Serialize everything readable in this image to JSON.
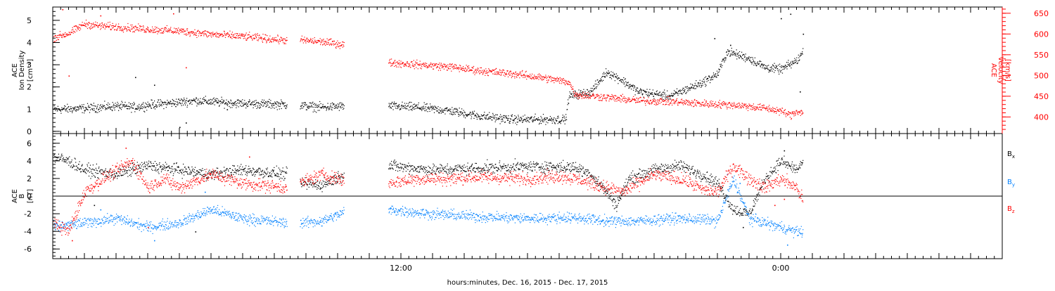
{
  "chart_data": {
    "type": "scatter",
    "xlabel": "hours:minutes, Dec. 16, 2015 - Dec. 17, 2015",
    "xlim": [
      0,
      30
    ],
    "x_tick_labels": [
      {
        "t": 11,
        "label": "12:00"
      },
      {
        "t": 23,
        "label": "0:00"
      }
    ],
    "x_major_ticks": [
      1,
      2,
      3,
      4,
      5,
      6,
      7,
      8,
      9,
      10,
      11,
      12,
      13,
      14,
      15,
      16,
      17,
      18,
      19,
      20,
      21,
      22,
      23,
      24,
      25,
      26,
      27,
      28,
      29
    ],
    "gaps": [
      [
        7.4,
        7.8
      ],
      [
        9.2,
        10.6
      ]
    ],
    "data_end": 23.7,
    "colors": {
      "black": "#000000",
      "red": "#ff0000",
      "blue": "#0080ff"
    },
    "panels": [
      {
        "name": "plasma",
        "left_axis": {
          "label_lines": [
            "ACE",
            "Ion Density"
          ],
          "unit": "[cm⁻³]",
          "ylim": [
            -0.1,
            5.6
          ],
          "ticks": [
            0,
            1,
            2,
            3,
            4,
            5
          ],
          "color": "#000000"
        },
        "right_axis": {
          "label_lines": [
            "ACE",
            "Velocity"
          ],
          "unit": "[km/s]",
          "ylim": [
            360,
            665
          ],
          "ticks": [
            400,
            450,
            500,
            550,
            600,
            650
          ],
          "color": "#ff0000"
        },
        "series": [
          {
            "name": "Ion Density",
            "axis": "left",
            "color": "#000000",
            "scatter": 0.15,
            "anchors": [
              [
                0.0,
                1.0
              ],
              [
                1.0,
                1.05
              ],
              [
                2.0,
                1.15
              ],
              [
                2.6,
                1.1
              ],
              [
                3.0,
                1.2
              ],
              [
                3.8,
                1.3
              ],
              [
                4.5,
                1.4
              ],
              [
                5.5,
                1.3
              ],
              [
                6.5,
                1.25
              ],
              [
                7.4,
                1.22
              ],
              [
                7.8,
                1.18
              ],
              [
                8.5,
                1.1
              ],
              [
                9.2,
                1.15
              ],
              [
                10.6,
                1.15
              ],
              [
                11.5,
                1.1
              ],
              [
                12.5,
                0.95
              ],
              [
                13.5,
                0.7
              ],
              [
                14.5,
                0.55
              ],
              [
                15.5,
                0.55
              ],
              [
                16.2,
                0.55
              ],
              [
                16.3,
                1.6
              ],
              [
                17.0,
                1.8
              ],
              [
                17.5,
                2.7
              ],
              [
                18.0,
                2.3
              ],
              [
                18.5,
                1.8
              ],
              [
                19.5,
                1.6
              ],
              [
                20.5,
                2.2
              ],
              [
                21.0,
                2.6
              ],
              [
                21.3,
                3.6
              ],
              [
                22.0,
                3.3
              ],
              [
                22.5,
                2.9
              ],
              [
                23.0,
                2.8
              ],
              [
                23.5,
                3.2
              ],
              [
                23.7,
                3.6
              ]
            ],
            "spikes": [
              [
                2.6,
                2.45
              ],
              [
                3.2,
                2.1
              ],
              [
                4.0,
                0.2
              ],
              [
                4.2,
                0.4
              ],
              [
                5.5,
                1.0
              ],
              [
                20.9,
                4.2
              ],
              [
                21.4,
                3.9
              ],
              [
                23.3,
                5.3
              ],
              [
                23.0,
                5.1
              ],
              [
                23.7,
                4.4
              ],
              [
                23.6,
                1.8
              ]
            ]
          },
          {
            "name": "Velocity",
            "axis": "right",
            "color": "#ff0000",
            "scatter": 7,
            "anchors": [
              [
                0.0,
                592
              ],
              [
                0.5,
                602
              ],
              [
                1.0,
                625
              ],
              [
                1.5,
                620
              ],
              [
                2.0,
                618
              ],
              [
                3.0,
                612
              ],
              [
                4.0,
                608
              ],
              [
                5.0,
                600
              ],
              [
                6.0,
                595
              ],
              [
                7.4,
                585
              ],
              [
                7.8,
                586
              ],
              [
                8.5,
                582
              ],
              [
                9.2,
                575
              ],
              [
                10.6,
                532
              ],
              [
                11.5,
                527
              ],
              [
                12.5,
                522
              ],
              [
                13.5,
                512
              ],
              [
                14.5,
                505
              ],
              [
                15.5,
                495
              ],
              [
                16.3,
                485
              ],
              [
                16.5,
                455
              ],
              [
                17.5,
                448
              ],
              [
                18.5,
                440
              ],
              [
                19.5,
                438
              ],
              [
                20.5,
                433
              ],
              [
                21.5,
                430
              ],
              [
                22.5,
                422
              ],
              [
                23.0,
                415
              ],
              [
                23.3,
                405
              ],
              [
                23.5,
                415
              ],
              [
                23.7,
                410
              ]
            ],
            "spikes": [
              [
                0.5,
                500
              ],
              [
                1.5,
                645
              ],
              [
                3.8,
                650
              ],
              [
                4.2,
                520
              ],
              [
                0.3,
                660
              ]
            ]
          }
        ]
      },
      {
        "name": "magnetic",
        "left_axis": {
          "label_lines": [
            "ACE",
            "B"
          ],
          "unit": "[nT]",
          "ylim": [
            -7.1,
            7.1
          ],
          "ticks": [
            -6,
            -4,
            -2,
            0,
            2,
            4,
            6
          ],
          "color": "#000000"
        },
        "zero_line": true,
        "legend": [
          {
            "base": "B",
            "sub": "x",
            "color": "#000000"
          },
          {
            "base": "B",
            "sub": "y",
            "color": "#0080ff"
          },
          {
            "base": "B",
            "sub": "z",
            "color": "#ff0000"
          }
        ],
        "series": [
          {
            "name": "Bx",
            "color": "#000000",
            "scatter": 0.5,
            "anchors": [
              [
                0.0,
                4.5
              ],
              [
                0.5,
                4.0
              ],
              [
                1.0,
                3.0
              ],
              [
                2.0,
                2.5
              ],
              [
                3.0,
                3.5
              ],
              [
                4.0,
                3.0
              ],
              [
                5.0,
                2.5
              ],
              [
                6.0,
                3.0
              ],
              [
                7.4,
                2.5
              ],
              [
                7.8,
                1.5
              ],
              [
                8.5,
                1.3
              ],
              [
                9.2,
                2.5
              ],
              [
                10.6,
                3.5
              ],
              [
                12.0,
                3.0
              ],
              [
                13.5,
                3.2
              ],
              [
                15.0,
                3.4
              ],
              [
                16.5,
                3.3
              ],
              [
                17.0,
                2.5
              ],
              [
                17.5,
                0.5
              ],
              [
                17.8,
                -1.0
              ],
              [
                18.2,
                2.0
              ],
              [
                19.0,
                3.0
              ],
              [
                19.8,
                3.5
              ],
              [
                20.5,
                2.5
              ],
              [
                21.0,
                1.5
              ],
              [
                21.5,
                -1.5
              ],
              [
                22.0,
                -2.0
              ],
              [
                22.5,
                2.0
              ],
              [
                23.0,
                4.0
              ],
              [
                23.5,
                3.0
              ],
              [
                23.7,
                4.0
              ]
            ],
            "spikes": [
              [
                4.5,
                -4.0
              ],
              [
                21.8,
                -3.5
              ],
              [
                23.1,
                5.2
              ],
              [
                2.5,
                3.8
              ],
              [
                1.3,
                -1.0
              ]
            ]
          },
          {
            "name": "By",
            "color": "#0080ff",
            "scatter": 0.45,
            "anchors": [
              [
                0.0,
                -3.5
              ],
              [
                1.0,
                -3.0
              ],
              [
                2.0,
                -2.5
              ],
              [
                3.0,
                -3.5
              ],
              [
                4.0,
                -3.0
              ],
              [
                5.0,
                -1.5
              ],
              [
                6.0,
                -2.5
              ],
              [
                7.4,
                -3.0
              ],
              [
                7.8,
                -3.0
              ],
              [
                8.5,
                -2.8
              ],
              [
                9.2,
                -1.8
              ],
              [
                10.6,
                -1.5
              ],
              [
                12.0,
                -2.0
              ],
              [
                13.5,
                -2.3
              ],
              [
                15.0,
                -2.5
              ],
              [
                16.3,
                -2.4
              ],
              [
                16.8,
                -2.5
              ],
              [
                17.5,
                -2.8
              ],
              [
                18.5,
                -2.8
              ],
              [
                19.5,
                -2.5
              ],
              [
                20.5,
                -2.6
              ],
              [
                21.0,
                -2.8
              ],
              [
                21.5,
                2.0
              ],
              [
                22.0,
                -2.5
              ],
              [
                22.5,
                -3.0
              ],
              [
                23.0,
                -3.5
              ],
              [
                23.5,
                -4.0
              ],
              [
                23.7,
                -4.0
              ]
            ],
            "spikes": [
              [
                3.2,
                -5.0
              ],
              [
                4.8,
                0.5
              ],
              [
                21.3,
                2.5
              ],
              [
                21.7,
                1.5
              ],
              [
                23.2,
                -5.5
              ],
              [
                1.5,
                -1.5
              ]
            ]
          },
          {
            "name": "Bz",
            "color": "#ff0000",
            "scatter": 0.55,
            "anchors": [
              [
                0.0,
                -3.0
              ],
              [
                0.5,
                -4.0
              ],
              [
                1.0,
                0.5
              ],
              [
                1.8,
                2.5
              ],
              [
                2.5,
                4.0
              ],
              [
                3.0,
                1.0
              ],
              [
                3.5,
                2.0
              ],
              [
                4.0,
                1.0
              ],
              [
                5.0,
                2.5
              ],
              [
                6.0,
                1.5
              ],
              [
                7.4,
                1.0
              ],
              [
                7.8,
                1.5
              ],
              [
                8.5,
                2.5
              ],
              [
                9.2,
                1.8
              ],
              [
                10.6,
                1.5
              ],
              [
                11.5,
                2.0
              ],
              [
                12.5,
                2.0
              ],
              [
                13.5,
                2.2
              ],
              [
                15.0,
                2.0
              ],
              [
                16.0,
                2.3
              ],
              [
                16.5,
                2.0
              ],
              [
                17.0,
                1.5
              ],
              [
                17.5,
                1.0
              ],
              [
                18.0,
                0.5
              ],
              [
                18.5,
                1.5
              ],
              [
                19.0,
                2.5
              ],
              [
                20.0,
                1.8
              ],
              [
                20.5,
                0.8
              ],
              [
                21.0,
                0.5
              ],
              [
                21.5,
                3.5
              ],
              [
                22.0,
                2.0
              ],
              [
                22.5,
                1.0
              ],
              [
                23.0,
                2.0
              ],
              [
                23.5,
                1.0
              ],
              [
                23.7,
                -0.5
              ]
            ],
            "spikes": [
              [
                2.3,
                5.5
              ],
              [
                0.6,
                -5.0
              ],
              [
                3.0,
                -3.5
              ],
              [
                6.2,
                4.5
              ],
              [
                23.1,
                -0.3
              ],
              [
                22.8,
                -1.0
              ]
            ]
          }
        ]
      }
    ]
  }
}
